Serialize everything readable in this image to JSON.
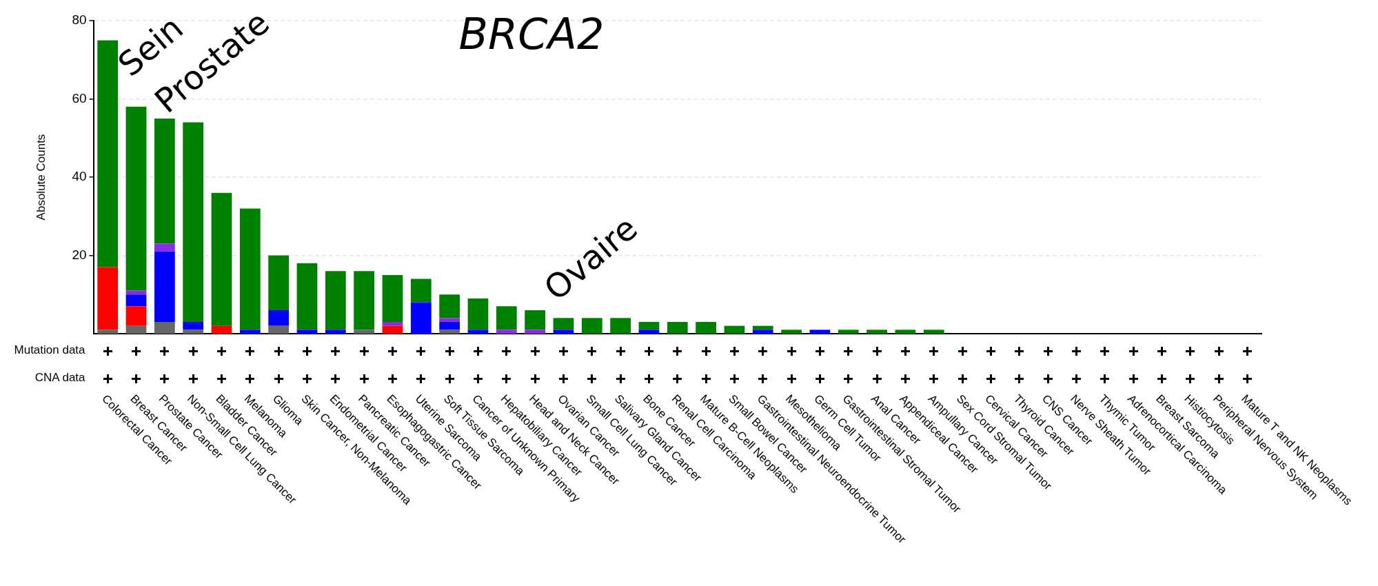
{
  "chart_data": {
    "type": "bar",
    "title": "BRCA2",
    "ylabel": "Absolute Counts",
    "stacked": true,
    "categories": [
      "Colorectal Cancer",
      "Breast Cancer",
      "Prostate Cancer",
      "Non-Small Cell Lung Cancer",
      "Bladder Cancer",
      "Melanoma",
      "Glioma",
      "Skin Cancer, Non-Melanoma",
      "Endometrial Cancer",
      "Pancreatic Cancer",
      "Esophagogastric Cancer",
      "Uterine Sarcoma",
      "Soft Tissue Sarcoma",
      "Cancer of Unknown Primary",
      "Hepatobiliary Cancer",
      "Head and Neck Cancer",
      "Ovarian Cancer",
      "Small Cell Lung Cancer",
      "Salivary Gland Cancer",
      "Bone Cancer",
      "Renal Cell Carcinoma",
      "Mature B-Cell Neoplasms",
      "Small Bowel Cancer",
      "Gastrointestinal Neuroendocrine Tumor",
      "Mesothelioma",
      "Germ Cell Tumor",
      "Gastrointestinal Stromal Tumor",
      "Anal Cancer",
      "Appendiceal Cancer",
      "Ampullary Cancer",
      "Sex Cord Stromal Tumor",
      "Cervical Cancer",
      "Thyroid Cancer",
      "CNS Cancer",
      "Nerve Sheath Tumor",
      "Thymic Tumor",
      "Adrenocortical Carcinoma",
      "Breast Sarcoma",
      "Histiocytosis",
      "Peripheral Nervous System",
      "Mature T and NK Neoplasms"
    ],
    "series": [
      {
        "color": "#666666",
        "values": [
          1,
          2,
          3,
          1,
          0,
          0,
          2,
          0,
          0,
          1,
          0,
          0,
          1,
          0,
          0,
          0,
          0,
          0,
          0,
          0,
          0,
          0,
          0,
          0,
          0,
          0,
          0,
          0,
          0,
          0,
          0,
          0,
          0,
          0,
          0,
          0,
          0,
          0,
          0,
          0,
          0
        ]
      },
      {
        "color": "#ff0000",
        "values": [
          16,
          5,
          0,
          0,
          2,
          0,
          0,
          0,
          0,
          0,
          2,
          0,
          0,
          0,
          0,
          0,
          0,
          0,
          0,
          0,
          0,
          0,
          0,
          0,
          0,
          0,
          0,
          0,
          0,
          0,
          0,
          0,
          0,
          0,
          0,
          0,
          0,
          0,
          0,
          0,
          0
        ]
      },
      {
        "color": "#0000ff",
        "values": [
          0,
          3,
          18,
          2,
          0,
          1,
          4,
          1,
          1,
          0,
          0,
          8,
          2,
          1,
          0,
          0,
          1,
          0,
          0,
          1,
          0,
          0,
          0,
          1,
          0,
          1,
          0,
          0,
          0,
          0,
          0,
          0,
          0,
          0,
          0,
          0,
          0,
          0,
          0,
          0,
          0
        ]
      },
      {
        "color": "#8b2be2",
        "values": [
          0,
          1,
          2,
          0,
          0,
          0,
          0,
          0,
          0,
          0,
          1,
          0,
          1,
          0,
          1,
          1,
          0,
          0,
          0,
          0,
          0,
          0,
          0,
          0,
          0,
          0,
          0,
          0,
          0,
          0,
          0,
          0,
          0,
          0,
          0,
          0,
          0,
          0,
          0,
          0,
          0
        ]
      },
      {
        "color": "#008000",
        "values": [
          58,
          47,
          32,
          51,
          34,
          31,
          14,
          17,
          15,
          15,
          12,
          6,
          6,
          8,
          6,
          5,
          3,
          4,
          4,
          2,
          3,
          3,
          2,
          1,
          1,
          0,
          1,
          1,
          1,
          1,
          0,
          0,
          0,
          0,
          0,
          0,
          0,
          0,
          0,
          0,
          0
        ]
      }
    ],
    "ylim": [
      0,
      80
    ],
    "yticks": [
      20,
      40,
      60,
      80
    ],
    "grid": "y",
    "legend": false,
    "annotations": [
      "Mutation data",
      "CNA data",
      "Sein",
      "Prostate",
      "Ovaire"
    ]
  }
}
